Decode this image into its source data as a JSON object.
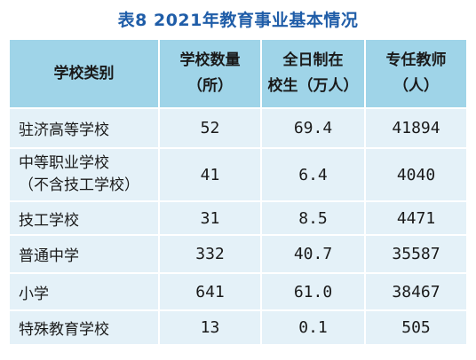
{
  "title": "表8 2021年教育事业基本情况",
  "headers": [
    {
      "lines": [
        "学校类别"
      ]
    },
    {
      "lines": [
        "学校数量",
        "（所）"
      ]
    },
    {
      "lines": [
        "全日制在",
        "校生（万人）"
      ]
    },
    {
      "lines": [
        "专任教师",
        "（人）"
      ]
    }
  ],
  "rows": [
    {
      "category": [
        "驻济高等学校"
      ],
      "schools": "52",
      "students": "69.4",
      "teachers": "41894"
    },
    {
      "category": [
        "中等职业学校",
        "（不含技工学校）"
      ],
      "schools": "41",
      "students": "6.4",
      "teachers": "4040"
    },
    {
      "category": [
        "技工学校"
      ],
      "schools": "31",
      "students": "8.5",
      "teachers": "4471"
    },
    {
      "category": [
        "普通中学"
      ],
      "schools": "332",
      "students": "40.7",
      "teachers": "35587"
    },
    {
      "category": [
        "小学"
      ],
      "schools": "641",
      "students": "61.0",
      "teachers": "38467"
    },
    {
      "category": [
        "特殊教育学校"
      ],
      "schools": "13",
      "students": "0.1",
      "teachers": "505"
    }
  ],
  "colors": {
    "title": "#1f5da8",
    "header_bg": "#9fd4e8",
    "body_bg": "#e4f1f8"
  }
}
